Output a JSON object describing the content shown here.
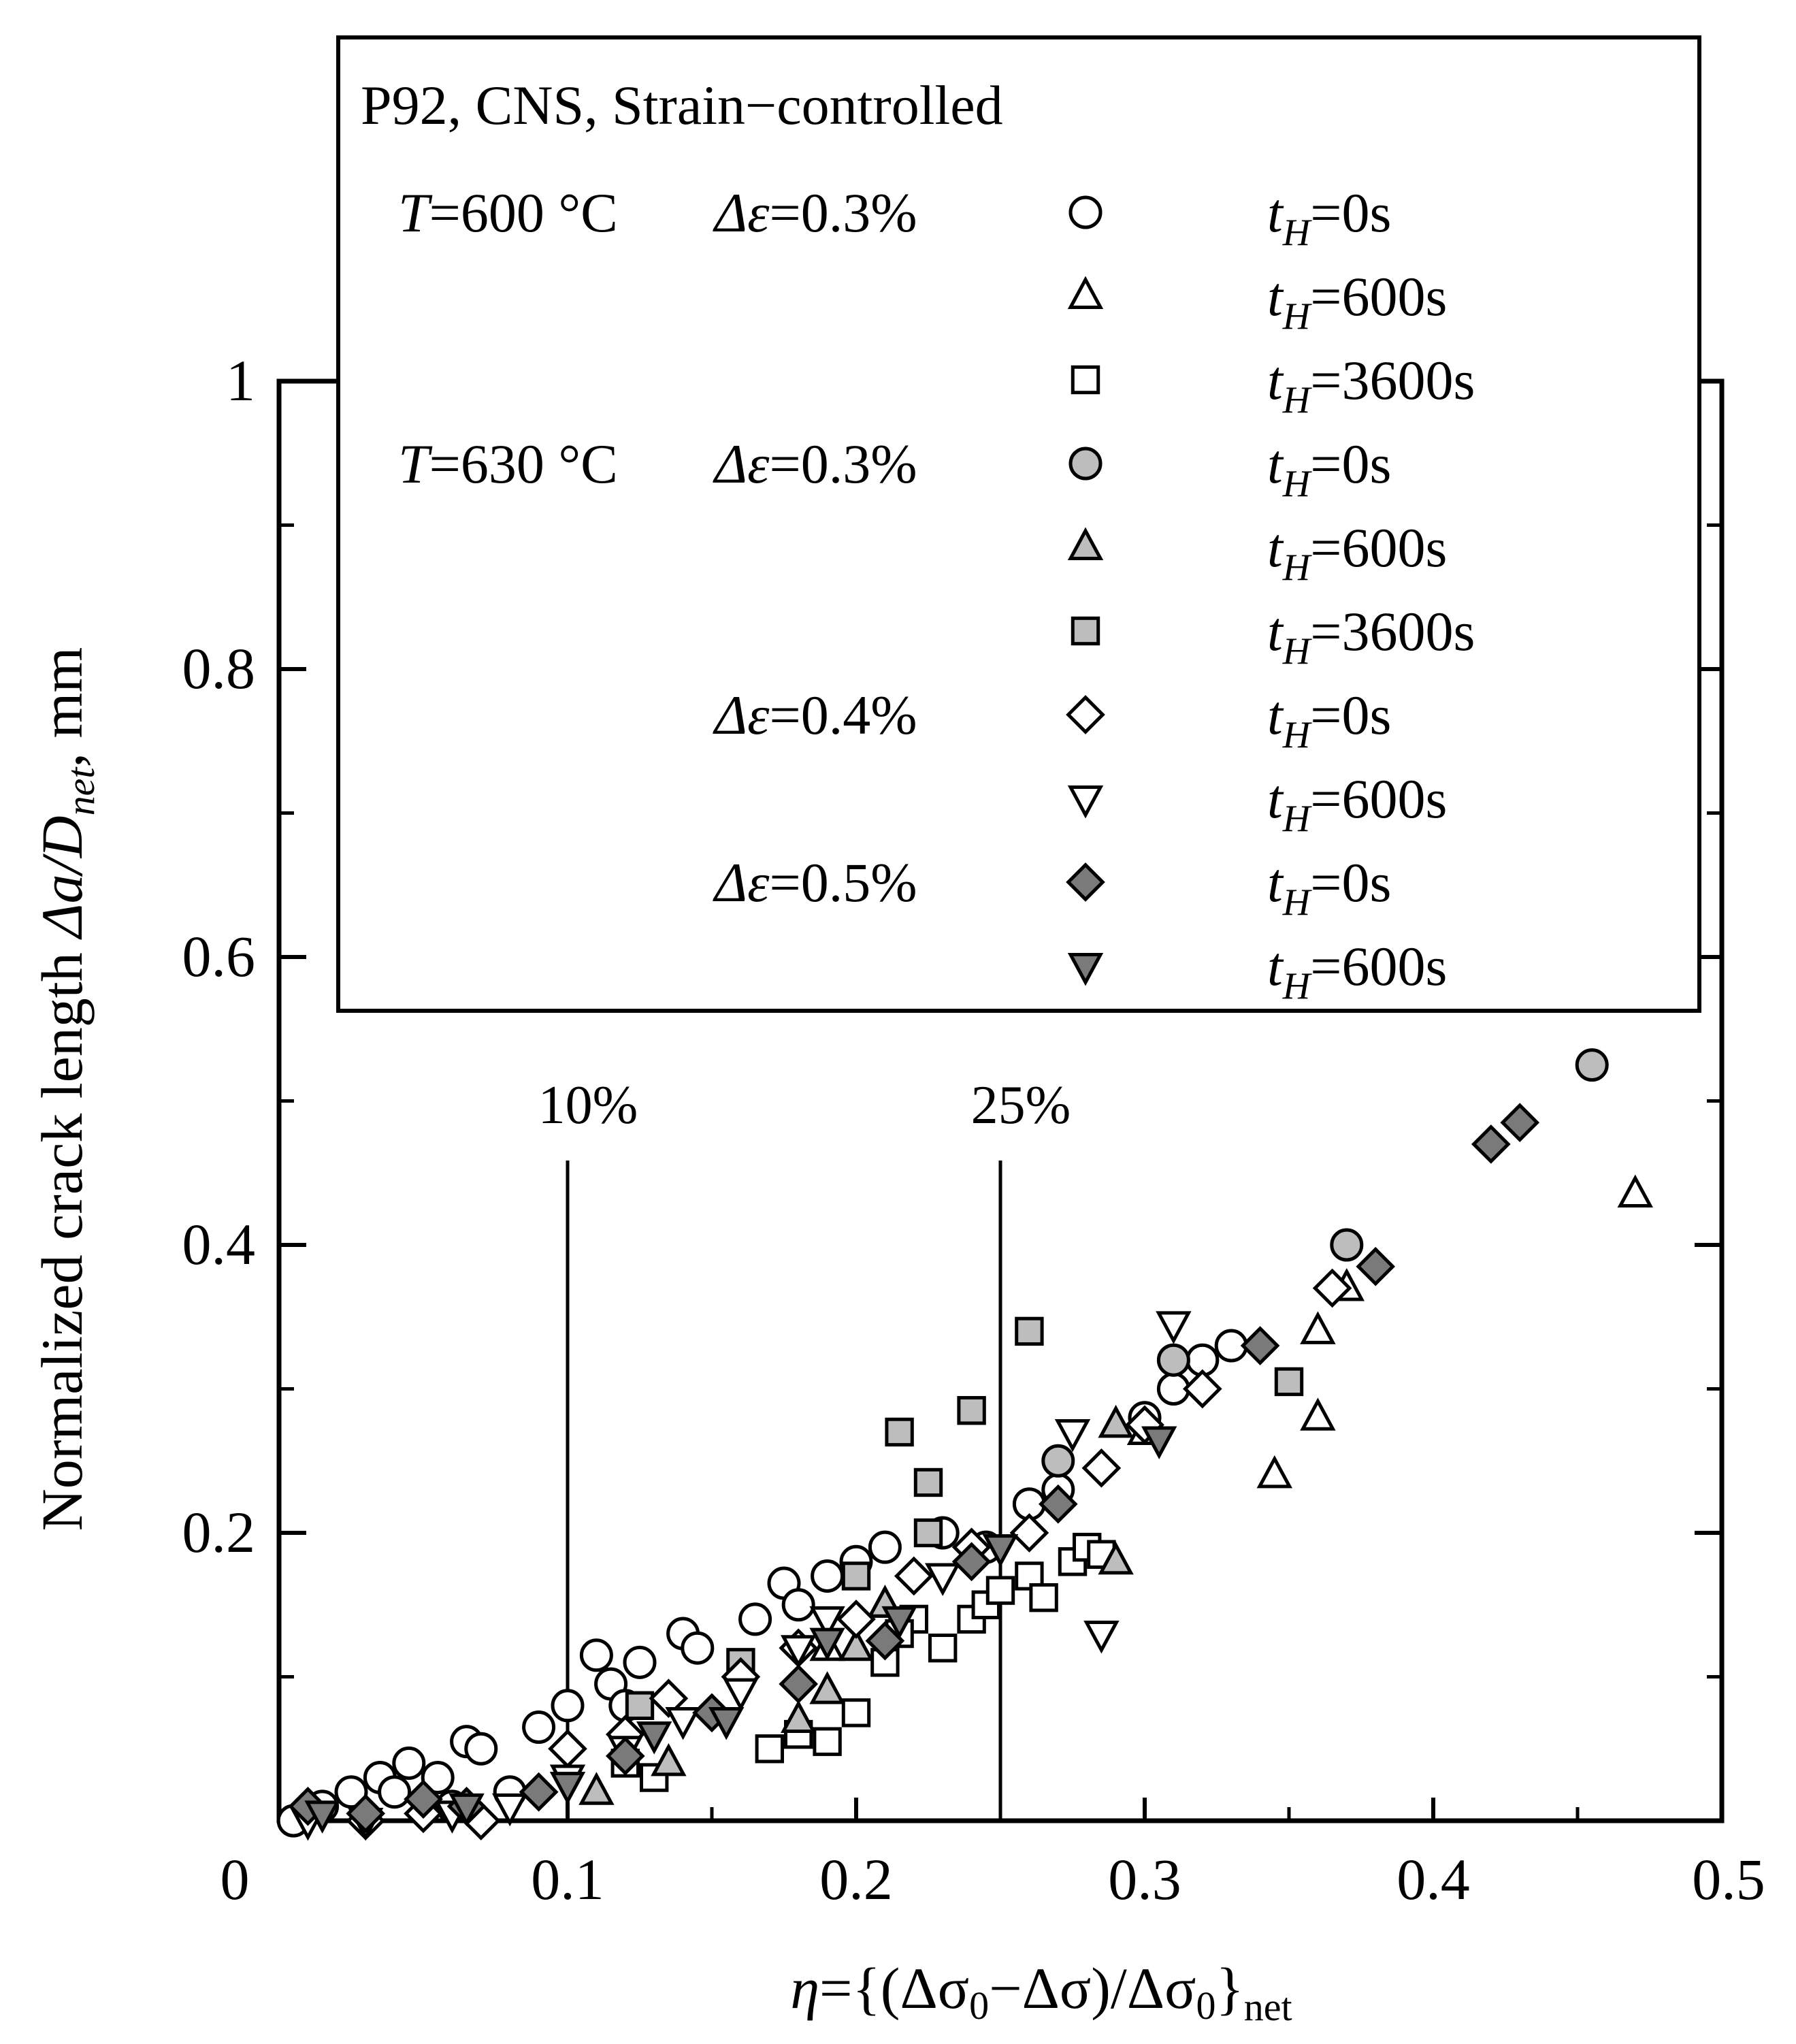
{
  "chart_data": {
    "type": "scatter",
    "title": "P92, CNS, Strain−controlled",
    "xlabel": {
      "eta": "η",
      "eq": "={(Δσ",
      "sub0a": "0",
      "minus": "−Δσ)/Δσ",
      "sub0b": "0",
      "close": "}",
      "net": "net"
    },
    "ylabel": {
      "prefix": "Normalized crack length ",
      "da": "Δa/D",
      "net": "net",
      "suffix": ", mm"
    },
    "xlim": [
      0,
      0.5
    ],
    "ylim": [
      0,
      1
    ],
    "xticks": [
      "0",
      "0.1",
      "0.2",
      "0.3",
      "0.4",
      "0.5"
    ],
    "yticks": [
      "0.2",
      "0.4",
      "0.6",
      "0.8",
      "1"
    ],
    "reference_lines": [
      {
        "x": 0.1,
        "label": "10%"
      },
      {
        "x": 0.25,
        "label": "25%"
      }
    ],
    "legend": {
      "groups": [
        {
          "T": "T",
          "eq_T": "=600 °C",
          "de": "Δε",
          "eq_de": "=0.3%"
        },
        {
          "T": "T",
          "eq_T": "=630 °C",
          "de": "Δε",
          "eq_de": "=0.3%"
        },
        {
          "T": "",
          "eq_T": "",
          "de": "Δε",
          "eq_de": "=0.4%"
        },
        {
          "T": "",
          "eq_T": "",
          "de": "Δε",
          "eq_de": "=0.5%"
        }
      ],
      "tH": {
        "t": "t",
        "sub": "H"
      }
    },
    "series": [
      {
        "name": "T=600 °C Δε=0.3% tH=0s",
        "group": 0,
        "marker": "circle",
        "fill": "#ffffff",
        "label": "=0s",
        "points": [
          [
            0.005,
            0.0
          ],
          [
            0.015,
            0.01
          ],
          [
            0.025,
            0.02
          ],
          [
            0.035,
            0.03
          ],
          [
            0.045,
            0.04
          ],
          [
            0.055,
            0.03
          ],
          [
            0.065,
            0.055
          ],
          [
            0.07,
            0.05
          ],
          [
            0.09,
            0.065
          ],
          [
            0.1,
            0.08
          ],
          [
            0.11,
            0.115
          ],
          [
            0.115,
            0.095
          ],
          [
            0.125,
            0.11
          ],
          [
            0.14,
            0.13
          ],
          [
            0.145,
            0.12
          ],
          [
            0.165,
            0.14
          ],
          [
            0.175,
            0.165
          ],
          [
            0.18,
            0.15
          ],
          [
            0.19,
            0.17
          ],
          [
            0.2,
            0.18
          ],
          [
            0.21,
            0.19
          ],
          [
            0.23,
            0.2
          ],
          [
            0.245,
            0.19
          ],
          [
            0.26,
            0.22
          ],
          [
            0.27,
            0.23
          ],
          [
            0.3,
            0.28
          ],
          [
            0.31,
            0.3
          ],
          [
            0.32,
            0.32
          ],
          [
            0.33,
            0.33
          ],
          [
            0.04,
            0.02
          ],
          [
            0.06,
            0.01
          ],
          [
            0.08,
            0.02
          ],
          [
            0.12,
            0.08
          ]
        ]
      },
      {
        "name": "T=600 °C Δε=0.3% tH=600s",
        "group": 0,
        "marker": "triangle-up",
        "fill": "#ffffff",
        "label": "=600s",
        "points": [
          [
            0.345,
            0.24
          ],
          [
            0.36,
            0.28
          ],
          [
            0.36,
            0.34
          ],
          [
            0.37,
            0.37
          ],
          [
            0.47,
            0.435
          ],
          [
            0.3,
            0.27
          ],
          [
            0.21,
            0.15
          ],
          [
            0.19,
            0.12
          ]
        ]
      },
      {
        "name": "T=600 °C Δε=0.3% tH=3600s",
        "group": 0,
        "marker": "square",
        "fill": "#ffffff",
        "label": "=3600s",
        "points": [
          [
            0.17,
            0.05
          ],
          [
            0.18,
            0.06
          ],
          [
            0.19,
            0.055
          ],
          [
            0.2,
            0.075
          ],
          [
            0.21,
            0.11
          ],
          [
            0.22,
            0.14
          ],
          [
            0.23,
            0.12
          ],
          [
            0.24,
            0.14
          ],
          [
            0.245,
            0.15
          ],
          [
            0.25,
            0.16
          ],
          [
            0.26,
            0.17
          ],
          [
            0.265,
            0.155
          ],
          [
            0.275,
            0.18
          ],
          [
            0.28,
            0.19
          ],
          [
            0.285,
            0.185
          ],
          [
            0.12,
            0.04
          ],
          [
            0.13,
            0.03
          ],
          [
            0.215,
            0.13
          ]
        ]
      },
      {
        "name": "T=630 °C Δε=0.3% tH=0s",
        "group": 1,
        "marker": "circle",
        "fill": "#bdbdbd",
        "label": "=0s",
        "points": [
          [
            0.455,
            0.525
          ],
          [
            0.37,
            0.4
          ],
          [
            0.31,
            0.32
          ],
          [
            0.27,
            0.25
          ]
        ]
      },
      {
        "name": "T=630 °C Δε=0.3% tH=600s",
        "group": 1,
        "marker": "triangle-up",
        "fill": "#bdbdbd",
        "label": "=600s",
        "points": [
          [
            0.11,
            0.02
          ],
          [
            0.135,
            0.04
          ],
          [
            0.18,
            0.07
          ],
          [
            0.19,
            0.09
          ],
          [
            0.2,
            0.12
          ],
          [
            0.21,
            0.15
          ],
          [
            0.29,
            0.18
          ],
          [
            0.29,
            0.275
          ]
        ]
      },
      {
        "name": "T=630 °C Δε=0.3% tH=3600s",
        "group": 1,
        "marker": "square",
        "fill": "#bdbdbd",
        "label": "=3600s",
        "points": [
          [
            0.125,
            0.08
          ],
          [
            0.16,
            0.11
          ],
          [
            0.2,
            0.17
          ],
          [
            0.215,
            0.27
          ],
          [
            0.225,
            0.235
          ],
          [
            0.225,
            0.2
          ],
          [
            0.24,
            0.285
          ],
          [
            0.26,
            0.34
          ],
          [
            0.35,
            0.305
          ]
        ]
      },
      {
        "name": "Δε=0.4% tH=0s",
        "group": 2,
        "marker": "diamond",
        "fill": "#ffffff",
        "label": "=0s",
        "points": [
          [
            0.03,
            0.0
          ],
          [
            0.05,
            0.005
          ],
          [
            0.07,
            0.0
          ],
          [
            0.09,
            0.02
          ],
          [
            0.1,
            0.05
          ],
          [
            0.12,
            0.06
          ],
          [
            0.135,
            0.085
          ],
          [
            0.16,
            0.1
          ],
          [
            0.18,
            0.12
          ],
          [
            0.2,
            0.14
          ],
          [
            0.22,
            0.17
          ],
          [
            0.24,
            0.19
          ],
          [
            0.26,
            0.2
          ],
          [
            0.285,
            0.245
          ],
          [
            0.3,
            0.275
          ],
          [
            0.32,
            0.3
          ],
          [
            0.365,
            0.37
          ]
        ]
      },
      {
        "name": "Δε=0.4% tH=600s",
        "group": 2,
        "marker": "triangle-down",
        "fill": "#ffffff",
        "label": "=600s",
        "points": [
          [
            0.01,
            0.0
          ],
          [
            0.03,
            0.0
          ],
          [
            0.06,
            0.005
          ],
          [
            0.08,
            0.01
          ],
          [
            0.1,
            0.03
          ],
          [
            0.12,
            0.05
          ],
          [
            0.14,
            0.07
          ],
          [
            0.16,
            0.09
          ],
          [
            0.18,
            0.12
          ],
          [
            0.19,
            0.14
          ],
          [
            0.23,
            0.17
          ],
          [
            0.25,
            0.19
          ],
          [
            0.275,
            0.27
          ],
          [
            0.285,
            0.13
          ],
          [
            0.31,
            0.345
          ]
        ]
      },
      {
        "name": "Δε=0.5% tH=0s",
        "group": 3,
        "marker": "diamond",
        "fill": "#7a7a7a",
        "label": "=0s",
        "points": [
          [
            0.01,
            0.01
          ],
          [
            0.03,
            0.005
          ],
          [
            0.05,
            0.015
          ],
          [
            0.065,
            0.01
          ],
          [
            0.09,
            0.02
          ],
          [
            0.12,
            0.045
          ],
          [
            0.15,
            0.075
          ],
          [
            0.18,
            0.095
          ],
          [
            0.21,
            0.125
          ],
          [
            0.24,
            0.18
          ],
          [
            0.27,
            0.22
          ],
          [
            0.34,
            0.33
          ],
          [
            0.38,
            0.385
          ],
          [
            0.42,
            0.47
          ],
          [
            0.43,
            0.485
          ]
        ]
      },
      {
        "name": "Δε=0.5% tH=600s",
        "group": 3,
        "marker": "triangle-down",
        "fill": "#7a7a7a",
        "label": "=600s",
        "points": [
          [
            0.015,
            0.005
          ],
          [
            0.065,
            0.01
          ],
          [
            0.1,
            0.025
          ],
          [
            0.13,
            0.06
          ],
          [
            0.155,
            0.07
          ],
          [
            0.19,
            0.125
          ],
          [
            0.215,
            0.14
          ],
          [
            0.25,
            0.19
          ],
          [
            0.305,
            0.265
          ]
        ]
      }
    ]
  }
}
